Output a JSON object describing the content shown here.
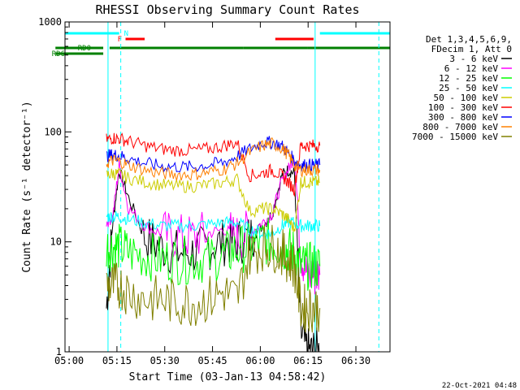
{
  "chart_data": {
    "type": "line",
    "title": "RHESSI Observing Summary Count Rates",
    "xlabel": "Start Time (03-Jan-13 04:58:42)",
    "ylabel": "Count Rate (s⁻¹ detector⁻¹)",
    "ylog": true,
    "ylim": [
      1,
      1000
    ],
    "xlim_minutes_after_start": [
      0,
      102
    ],
    "x_tick_labels": [
      "05:00",
      "05:15",
      "05:30",
      "05:45",
      "06:00",
      "06:15",
      "06:30"
    ],
    "y_tick_labels": [
      "1",
      "10",
      "100",
      "1000"
    ],
    "legend_header": [
      "Det 1,3,4,5,6,9,",
      "FDecim 1, Att 0"
    ],
    "footer_date": "22-Oct-2021 04:48",
    "x_minutes": [
      13,
      15,
      17,
      20,
      25,
      30,
      35,
      40,
      45,
      50,
      54,
      58,
      62,
      65,
      68,
      70,
      72,
      74,
      76,
      78,
      80
    ],
    "series": [
      {
        "name": "3 - 6 keV",
        "color": "#000000",
        "values": [
          2.5,
          15,
          45,
          25,
          11,
          9,
          8,
          8,
          9,
          10,
          10,
          11,
          14,
          18,
          40,
          45,
          42,
          1.5,
          1,
          1,
          1
        ]
      },
      {
        "name": "6 - 12 keV",
        "color": "#ff00ff",
        "values": [
          15,
          17,
          50,
          20,
          14,
          12,
          11,
          11,
          12,
          13,
          11,
          12,
          15,
          18,
          35,
          45,
          60,
          8,
          5,
          5,
          5
        ]
      },
      {
        "name": "12 - 25 keV",
        "color": "#00ff00",
        "values": [
          9,
          9,
          9,
          8,
          7.5,
          7,
          6.8,
          6.8,
          7,
          7.5,
          8.5,
          9,
          10,
          10,
          9,
          8.5,
          8,
          6,
          6,
          6,
          6
        ]
      },
      {
        "name": "25 - 50 keV",
        "color": "#00ffff",
        "values": [
          17,
          17,
          17,
          16,
          15,
          14,
          14,
          14,
          14.5,
          15,
          15,
          13,
          12,
          12,
          14,
          15,
          15,
          14,
          14,
          14,
          14
        ]
      },
      {
        "name": "50 - 100 keV",
        "color": "#cccc00",
        "values": [
          40,
          42,
          41,
          38,
          35,
          33,
          32,
          32,
          33,
          35,
          37,
          19,
          20,
          20,
          18,
          16,
          13,
          35,
          35,
          35,
          35
        ]
      },
      {
        "name": "100 - 300 keV",
        "color": "#ff0000",
        "values": [
          85,
          88,
          87,
          82,
          75,
          70,
          68,
          68,
          70,
          75,
          80,
          40,
          42,
          45,
          40,
          35,
          30,
          75,
          75,
          75,
          75
        ]
      },
      {
        "name": "300 - 800 keV",
        "color": "#0000ff",
        "values": [
          60,
          62,
          61,
          57,
          52,
          49,
          48,
          48,
          50,
          53,
          60,
          70,
          80,
          80,
          75,
          65,
          55,
          50,
          50,
          50,
          50
        ]
      },
      {
        "name": "800 - 7000 keV",
        "color": "#ff8000",
        "values": [
          52,
          55,
          54,
          50,
          45,
          42,
          41,
          41,
          43,
          46,
          52,
          65,
          75,
          78,
          72,
          62,
          50,
          45,
          45,
          45,
          45
        ]
      },
      {
        "name": "7000 - 15000 keV",
        "color": "#808000",
        "values": [
          4,
          4,
          4,
          3.5,
          3,
          3,
          2.8,
          2.8,
          3,
          3.5,
          3,
          8,
          9,
          9,
          8,
          7,
          6,
          2.5,
          2.5,
          2.5,
          2.5
        ]
      }
    ],
    "flag_bars": [
      {
        "label": "N",
        "color": "#00ffff",
        "segments": [
          [
            0,
            17
          ],
          [
            80,
            102
          ]
        ]
      },
      {
        "label": "F",
        "color": "#ff0000",
        "segments": [
          [
            19,
            25
          ],
          [
            66,
            78
          ]
        ]
      },
      {
        "label": "RD0",
        "color": "#008000",
        "segments": [
          [
            -3,
            12
          ],
          [
            14,
            56
          ],
          [
            56,
            76
          ],
          [
            76,
            102
          ]
        ]
      },
      {
        "label": "RD6",
        "color": "#008000",
        "segments": [
          [
            -3,
            12
          ]
        ]
      }
    ],
    "vertical_markers_minutes": [
      13.5,
      17.5,
      78.5,
      98.5
    ]
  }
}
